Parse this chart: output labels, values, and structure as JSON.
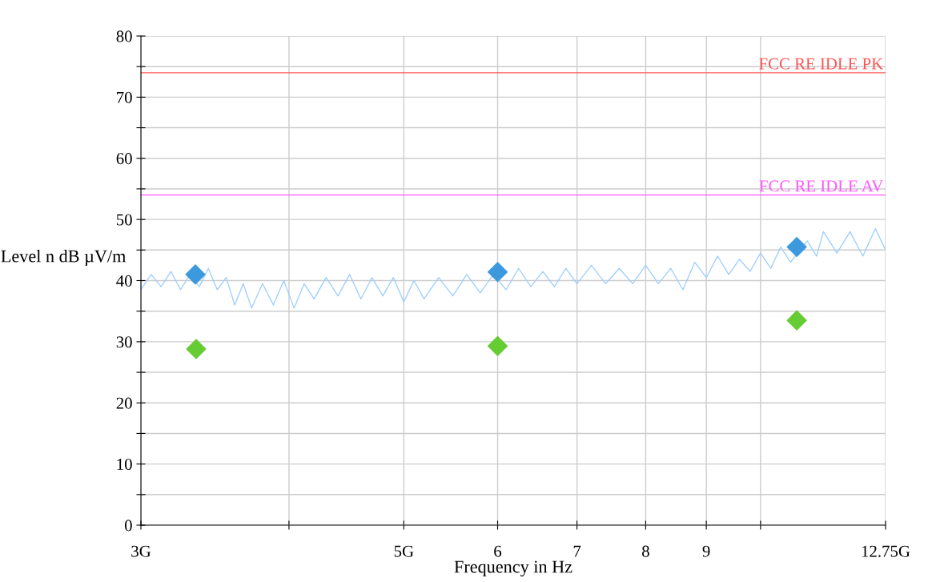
{
  "chart_data": {
    "type": "line",
    "xlabel": "Frequency in Hz",
    "ylabel": "Level n dB µV/m",
    "log": "x",
    "xlim": [
      3,
      12.75
    ],
    "ylim": [
      0,
      80
    ],
    "xticks": [
      {
        "value": 3,
        "label": "3G"
      },
      {
        "value": 4,
        "label": null
      },
      {
        "value": 5,
        "label": "5G"
      },
      6,
      7,
      8,
      9,
      {
        "value": 10,
        "label": null
      },
      {
        "value": 12.75,
        "label": "12.75G"
      }
    ],
    "yticks": [
      0,
      {
        "value": 5,
        "label": null
      },
      10,
      {
        "value": 15,
        "label": null
      },
      20,
      {
        "value": 25,
        "label": null
      },
      30,
      {
        "value": 35,
        "label": null
      },
      40,
      {
        "value": 45,
        "label": null
      },
      50,
      {
        "value": 55,
        "label": null
      },
      60,
      {
        "value": 65,
        "label": null
      },
      70,
      {
        "value": 75,
        "label": null
      },
      80
    ],
    "grid": true,
    "series": [
      {
        "color": "#99ccff",
        "marker": "none",
        "line_style": "solid",
        "x": [
          3.0,
          3.06,
          3.12,
          3.18,
          3.24,
          3.3,
          3.36,
          3.42,
          3.48,
          3.54,
          3.6,
          3.66,
          3.72,
          3.8,
          3.88,
          3.96,
          4.04,
          4.12,
          4.2,
          4.3,
          4.4,
          4.5,
          4.6,
          4.7,
          4.8,
          4.9,
          5.0,
          5.1,
          5.2,
          5.35,
          5.5,
          5.65,
          5.8,
          5.95,
          6.1,
          6.25,
          6.4,
          6.55,
          6.7,
          6.85,
          7.0,
          7.2,
          7.4,
          7.6,
          7.8,
          8.0,
          8.2,
          8.4,
          8.6,
          8.8,
          9.0,
          9.2,
          9.4,
          9.6,
          9.8,
          10.0,
          10.2,
          10.4,
          10.6,
          10.95,
          11.15,
          11.3,
          11.6,
          11.9,
          12.2,
          12.5,
          12.75
        ],
        "values": [
          38.5,
          41,
          39,
          41.5,
          38.5,
          41,
          39,
          42,
          38.5,
          40.5,
          36,
          39.5,
          35.5,
          39.5,
          36,
          40,
          35.5,
          39.5,
          37,
          40.5,
          37.5,
          41,
          37,
          40.5,
          37.5,
          40.5,
          36.5,
          40,
          37,
          40.5,
          37.5,
          41,
          38,
          41,
          38.5,
          42,
          39,
          41.5,
          39,
          42,
          39.5,
          42.5,
          39.5,
          42,
          39.5,
          42.5,
          39.5,
          42,
          38.5,
          43,
          40.5,
          44,
          41,
          43.5,
          41.5,
          44.5,
          42,
          45.5,
          43,
          46.5,
          44,
          48,
          44.5,
          48,
          44,
          48.5,
          45
        ]
      },
      {
        "type": "scatter",
        "color": "#3d99dd",
        "marker": "diamond",
        "x": [
          3.335,
          6.0,
          10.73
        ],
        "values": [
          41.0,
          41.4,
          45.5
        ]
      },
      {
        "type": "scatter",
        "color": "#66cc33",
        "marker": "diamond",
        "x": [
          3.34,
          6.0,
          10.73
        ],
        "values": [
          28.8,
          29.3,
          33.5
        ]
      }
    ],
    "ref_lines": [
      {
        "axis": "y",
        "value": 74,
        "label": "FCC RE IDLE PK",
        "color": "#ff5555"
      },
      {
        "axis": "y",
        "value": 54,
        "label": "FCC RE IDLE AV",
        "color": "#ff55ff"
      }
    ]
  }
}
